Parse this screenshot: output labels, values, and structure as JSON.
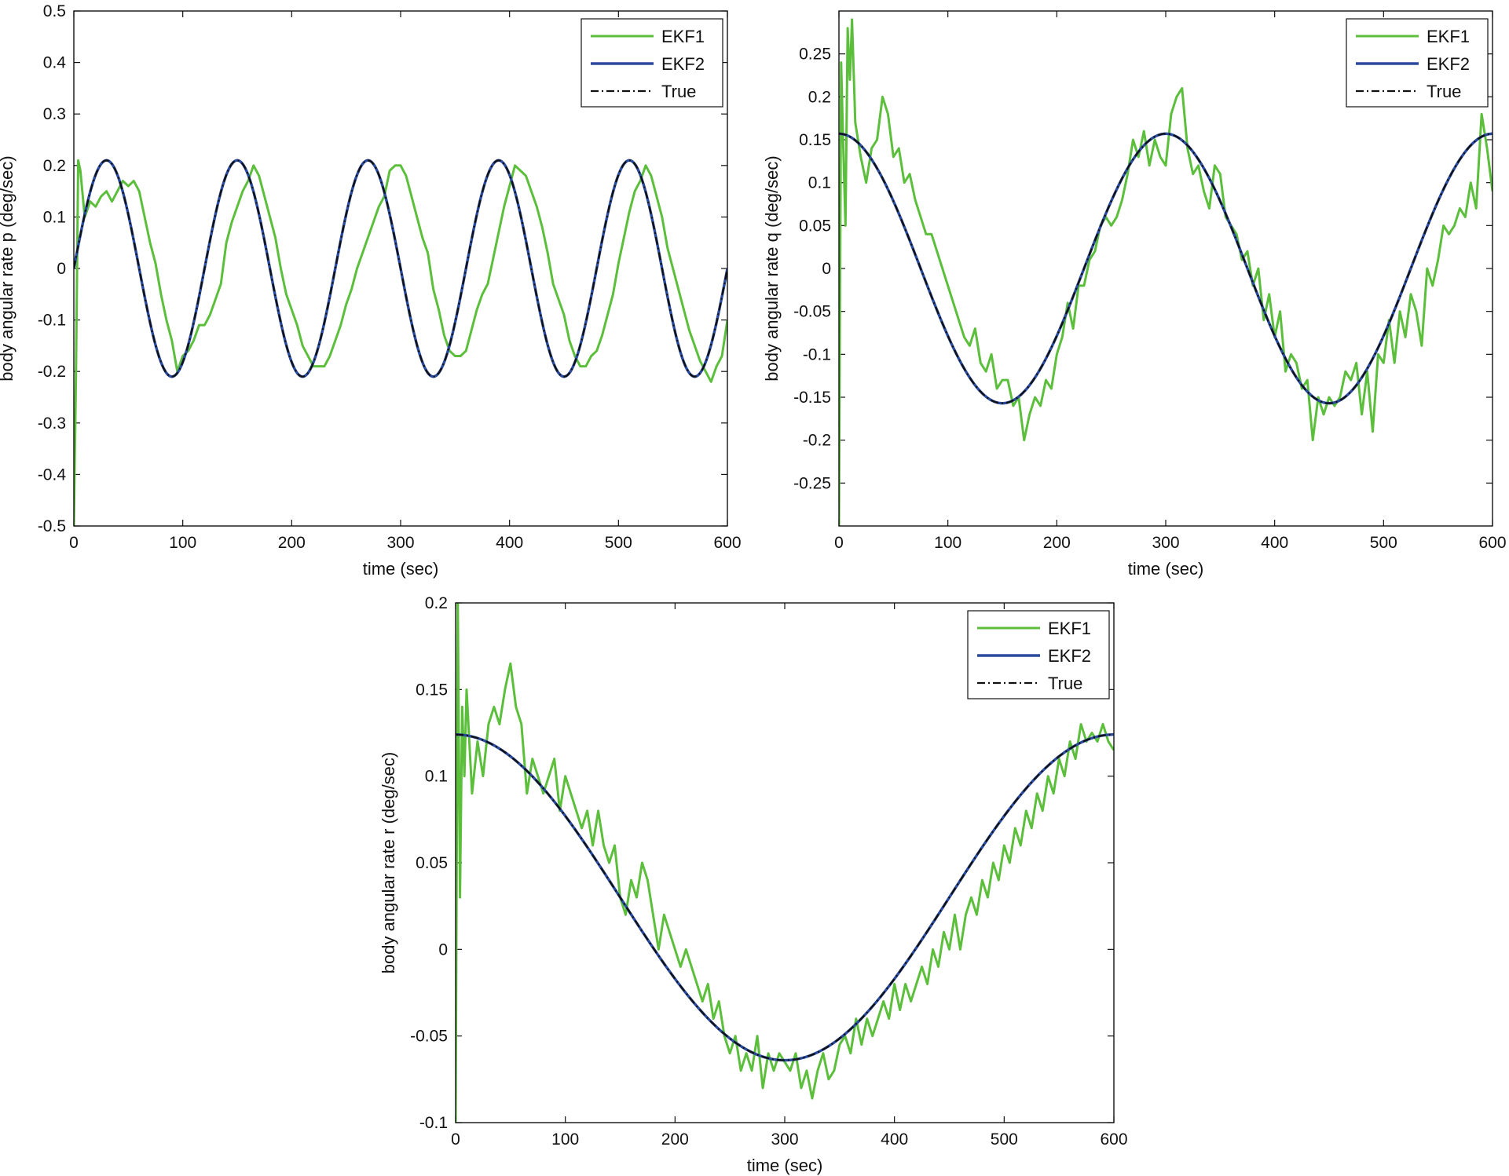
{
  "colors": {
    "ekf1": "#5cbf3c",
    "ekf2": "#2a4a9e",
    "true": "#111111",
    "axes": "#111111",
    "background": "#ffffff"
  },
  "chart_data": [
    {
      "type": "line",
      "title": "",
      "xlabel": "time (sec)",
      "ylabel": "body angular rate p (deg/sec)",
      "xlim": [
        0,
        600
      ],
      "ylim": [
        -0.5,
        0.5
      ],
      "xticks": [
        0,
        100,
        200,
        300,
        400,
        500,
        600
      ],
      "xtick_labels": [
        "0",
        "100",
        "200",
        "300",
        "400",
        "500",
        "600"
      ],
      "yticks": [
        -0.5,
        -0.4,
        -0.3,
        -0.2,
        -0.1,
        0,
        0.1,
        0.2,
        0.3,
        0.4,
        0.5
      ],
      "ytick_labels": [
        "-0.5",
        "-0.4",
        "-0.3",
        "-0.2",
        "-0.1",
        "0",
        "0.1",
        "0.2",
        "0.3",
        "0.4",
        "0.5"
      ],
      "legend_position": "top-right",
      "series": [
        {
          "name": "EKF1",
          "style": "solid",
          "x": [
            0,
            2,
            4,
            6,
            10,
            15,
            20,
            25,
            30,
            35,
            40,
            45,
            50,
            55,
            60,
            65,
            70,
            75,
            80,
            85,
            90,
            95,
            100,
            105,
            110,
            115,
            120,
            125,
            130,
            135,
            140,
            145,
            150,
            155,
            160,
            165,
            170,
            175,
            180,
            185,
            190,
            195,
            200,
            205,
            210,
            215,
            220,
            225,
            230,
            235,
            240,
            245,
            250,
            255,
            260,
            265,
            270,
            275,
            280,
            285,
            290,
            295,
            300,
            305,
            310,
            315,
            320,
            325,
            330,
            335,
            340,
            345,
            350,
            355,
            360,
            365,
            370,
            375,
            380,
            385,
            390,
            395,
            400,
            405,
            410,
            415,
            420,
            425,
            430,
            435,
            440,
            445,
            450,
            455,
            460,
            465,
            470,
            475,
            480,
            485,
            490,
            495,
            500,
            505,
            510,
            515,
            520,
            525,
            530,
            535,
            540,
            545,
            550,
            555,
            560,
            565,
            570,
            575,
            580,
            585,
            590,
            595,
            600
          ],
          "y": [
            -0.5,
            -0.2,
            0.21,
            0.19,
            0.1,
            0.13,
            0.12,
            0.14,
            0.15,
            0.13,
            0.15,
            0.17,
            0.16,
            0.17,
            0.15,
            0.1,
            0.05,
            0.01,
            -0.05,
            -0.1,
            -0.14,
            -0.2,
            -0.17,
            -0.16,
            -0.14,
            -0.11,
            -0.11,
            -0.09,
            -0.06,
            -0.03,
            0.05,
            0.09,
            0.12,
            0.15,
            0.17,
            0.2,
            0.18,
            0.14,
            0.1,
            0.06,
            0.0,
            -0.05,
            -0.08,
            -0.11,
            -0.15,
            -0.17,
            -0.19,
            -0.19,
            -0.19,
            -0.17,
            -0.14,
            -0.11,
            -0.07,
            -0.04,
            0.0,
            0.03,
            0.06,
            0.09,
            0.12,
            0.14,
            0.19,
            0.2,
            0.2,
            0.18,
            0.14,
            0.1,
            0.06,
            0.03,
            -0.04,
            -0.08,
            -0.13,
            -0.16,
            -0.17,
            -0.17,
            -0.16,
            -0.12,
            -0.08,
            -0.05,
            -0.03,
            0.02,
            0.07,
            0.12,
            0.16,
            0.2,
            0.19,
            0.18,
            0.15,
            0.12,
            0.08,
            0.03,
            -0.03,
            -0.06,
            -0.09,
            -0.14,
            -0.17,
            -0.19,
            -0.19,
            -0.17,
            -0.16,
            -0.13,
            -0.09,
            -0.05,
            0.01,
            0.06,
            0.11,
            0.15,
            0.17,
            0.2,
            0.18,
            0.14,
            0.1,
            0.04,
            0.0,
            -0.04,
            -0.08,
            -0.12,
            -0.15,
            -0.18,
            -0.2,
            -0.22,
            -0.19,
            -0.17,
            -0.1
          ]
        },
        {
          "name": "EKF2",
          "style": "solid",
          "function": "0.21*sin(2*pi*t/120)",
          "amplitude": 0.21,
          "period": 120,
          "phase": 0,
          "offset": 0,
          "shape": "sin"
        },
        {
          "name": "True",
          "style": "dashdot",
          "function": "0.21*sin(2*pi*t/120)",
          "amplitude": 0.21,
          "period": 120,
          "phase": 0,
          "offset": 0,
          "shape": "sin"
        }
      ]
    },
    {
      "type": "line",
      "title": "",
      "xlabel": "time (sec)",
      "ylabel": "body angular rate q (deg/sec)",
      "xlim": [
        0,
        600
      ],
      "ylim": [
        -0.3,
        0.3
      ],
      "xticks": [
        0,
        100,
        200,
        300,
        400,
        500,
        600
      ],
      "xtick_labels": [
        "0",
        "100",
        "200",
        "300",
        "400",
        "500",
        "600"
      ],
      "yticks": [
        -0.25,
        -0.2,
        -0.15,
        -0.1,
        -0.05,
        0,
        0.05,
        0.1,
        0.15,
        0.2,
        0.25
      ],
      "ytick_labels": [
        "-0.25",
        "-0.2",
        "-0.15",
        "-0.1",
        "-0.05",
        "0",
        "0.05",
        "0.1",
        "0.15",
        "0.2",
        "0.25"
      ],
      "legend_position": "top-right",
      "series": [
        {
          "name": "EKF1",
          "style": "solid",
          "x": [
            0,
            2,
            4,
            6,
            8,
            10,
            12,
            15,
            20,
            25,
            30,
            35,
            40,
            45,
            50,
            55,
            60,
            65,
            70,
            75,
            80,
            85,
            90,
            95,
            100,
            105,
            110,
            115,
            120,
            125,
            130,
            135,
            140,
            145,
            150,
            155,
            160,
            165,
            170,
            175,
            180,
            185,
            190,
            195,
            200,
            205,
            210,
            215,
            220,
            225,
            230,
            235,
            240,
            245,
            250,
            255,
            260,
            265,
            270,
            275,
            280,
            285,
            290,
            295,
            300,
            305,
            310,
            315,
            320,
            325,
            330,
            335,
            340,
            345,
            350,
            355,
            360,
            365,
            370,
            375,
            380,
            385,
            390,
            395,
            400,
            405,
            410,
            415,
            420,
            425,
            430,
            435,
            440,
            445,
            450,
            455,
            460,
            465,
            470,
            475,
            480,
            485,
            490,
            495,
            500,
            505,
            510,
            515,
            520,
            525,
            530,
            535,
            540,
            545,
            550,
            555,
            560,
            565,
            570,
            575,
            580,
            585,
            590,
            595,
            600
          ],
          "y": [
            -0.3,
            0.24,
            0.14,
            0.05,
            0.28,
            0.22,
            0.29,
            0.17,
            0.13,
            0.1,
            0.14,
            0.15,
            0.2,
            0.18,
            0.13,
            0.14,
            0.1,
            0.11,
            0.08,
            0.06,
            0.04,
            0.04,
            0.02,
            0.0,
            -0.02,
            -0.04,
            -0.06,
            -0.08,
            -0.09,
            -0.07,
            -0.11,
            -0.12,
            -0.1,
            -0.14,
            -0.13,
            -0.13,
            -0.16,
            -0.15,
            -0.2,
            -0.17,
            -0.15,
            -0.16,
            -0.13,
            -0.14,
            -0.1,
            -0.08,
            -0.04,
            -0.07,
            -0.02,
            -0.02,
            0.01,
            0.02,
            0.05,
            0.06,
            0.05,
            0.06,
            0.08,
            0.11,
            0.15,
            0.13,
            0.16,
            0.12,
            0.15,
            0.13,
            0.12,
            0.18,
            0.2,
            0.21,
            0.14,
            0.11,
            0.12,
            0.09,
            0.07,
            0.12,
            0.11,
            0.06,
            0.05,
            0.04,
            0.01,
            0.02,
            -0.02,
            0.0,
            -0.06,
            -0.03,
            -0.08,
            -0.05,
            -0.12,
            -0.1,
            -0.11,
            -0.14,
            -0.13,
            -0.2,
            -0.15,
            -0.17,
            -0.15,
            -0.16,
            -0.15,
            -0.12,
            -0.13,
            -0.11,
            -0.17,
            -0.12,
            -0.19,
            -0.1,
            -0.11,
            -0.06,
            -0.11,
            -0.05,
            -0.08,
            -0.03,
            -0.05,
            -0.09,
            0.0,
            -0.02,
            0.01,
            0.05,
            0.04,
            0.05,
            0.07,
            0.06,
            0.1,
            0.07,
            0.18,
            0.14,
            0.09
          ]
        },
        {
          "name": "EKF2",
          "style": "solid",
          "function": "0.157*cos(2*pi*t/300)",
          "amplitude": 0.157,
          "period": 300,
          "phase": 0,
          "offset": 0,
          "shape": "cos"
        },
        {
          "name": "True",
          "style": "dashdot",
          "function": "0.157*cos(2*pi*t/300)",
          "amplitude": 0.157,
          "period": 300,
          "phase": 0,
          "offset": 0,
          "shape": "cos"
        }
      ]
    },
    {
      "type": "line",
      "title": "",
      "xlabel": "time (sec)",
      "ylabel": "body angular rate r (deg/sec)",
      "xlim": [
        0,
        600
      ],
      "ylim": [
        -0.1,
        0.2
      ],
      "xticks": [
        0,
        100,
        200,
        300,
        400,
        500,
        600
      ],
      "xtick_labels": [
        "0",
        "100",
        "200",
        "300",
        "400",
        "500",
        "600"
      ],
      "yticks": [
        -0.1,
        -0.05,
        0,
        0.05,
        0.1,
        0.15,
        0.2
      ],
      "ytick_labels": [
        "-0.1",
        "-0.05",
        "0",
        "0.05",
        "0.1",
        "0.15",
        "0.2"
      ],
      "legend_position": "top-right",
      "series": [
        {
          "name": "EKF1",
          "style": "solid",
          "x": [
            0,
            2,
            4,
            6,
            8,
            10,
            15,
            20,
            25,
            30,
            35,
            40,
            45,
            50,
            55,
            60,
            65,
            70,
            75,
            80,
            85,
            90,
            95,
            100,
            105,
            110,
            115,
            120,
            125,
            130,
            135,
            140,
            145,
            150,
            155,
            160,
            165,
            170,
            175,
            180,
            185,
            190,
            195,
            200,
            205,
            210,
            215,
            220,
            225,
            230,
            235,
            240,
            245,
            250,
            255,
            260,
            265,
            270,
            275,
            280,
            285,
            290,
            295,
            300,
            305,
            310,
            315,
            320,
            325,
            330,
            335,
            340,
            345,
            350,
            355,
            360,
            365,
            370,
            375,
            380,
            385,
            390,
            395,
            400,
            405,
            410,
            415,
            420,
            425,
            430,
            435,
            440,
            445,
            450,
            455,
            460,
            465,
            470,
            475,
            480,
            485,
            490,
            495,
            500,
            505,
            510,
            515,
            520,
            525,
            530,
            535,
            540,
            545,
            550,
            555,
            560,
            565,
            570,
            575,
            580,
            585,
            590,
            595,
            600
          ],
          "y": [
            -0.1,
            0.2,
            0.03,
            0.14,
            0.1,
            0.15,
            0.09,
            0.12,
            0.1,
            0.13,
            0.14,
            0.13,
            0.15,
            0.165,
            0.14,
            0.13,
            0.09,
            0.11,
            0.1,
            0.09,
            0.1,
            0.11,
            0.08,
            0.1,
            0.09,
            0.08,
            0.07,
            0.08,
            0.06,
            0.08,
            0.06,
            0.05,
            0.06,
            0.03,
            0.02,
            0.04,
            0.03,
            0.05,
            0.04,
            0.02,
            0.0,
            0.02,
            0.01,
            0.0,
            -0.01,
            0.0,
            -0.01,
            -0.02,
            -0.03,
            -0.02,
            -0.04,
            -0.03,
            -0.05,
            -0.06,
            -0.05,
            -0.07,
            -0.06,
            -0.07,
            -0.05,
            -0.08,
            -0.06,
            -0.07,
            -0.06,
            -0.065,
            -0.07,
            -0.06,
            -0.08,
            -0.07,
            -0.086,
            -0.07,
            -0.06,
            -0.075,
            -0.07,
            -0.055,
            -0.05,
            -0.06,
            -0.04,
            -0.055,
            -0.04,
            -0.05,
            -0.04,
            -0.03,
            -0.04,
            -0.02,
            -0.035,
            -0.02,
            -0.03,
            -0.02,
            -0.01,
            -0.02,
            0.0,
            -0.01,
            0.01,
            0.0,
            0.02,
            0.0,
            0.02,
            0.03,
            0.02,
            0.04,
            0.03,
            0.05,
            0.04,
            0.06,
            0.05,
            0.07,
            0.06,
            0.08,
            0.07,
            0.09,
            0.08,
            0.1,
            0.09,
            0.11,
            0.1,
            0.12,
            0.11,
            0.13,
            0.12,
            0.125,
            0.12,
            0.13,
            0.12,
            0.115
          ]
        },
        {
          "name": "EKF2",
          "style": "solid",
          "function": "0.03 + 0.094*cos(2*pi*t/600)",
          "amplitude": 0.094,
          "period": 600,
          "phase": 0,
          "offset": 0.03,
          "shape": "cos"
        },
        {
          "name": "True",
          "style": "dashdot",
          "function": "0.03 + 0.094*cos(2*pi*t/600)",
          "amplitude": 0.094,
          "period": 600,
          "phase": 0,
          "offset": 0.03,
          "shape": "cos"
        }
      ]
    }
  ]
}
